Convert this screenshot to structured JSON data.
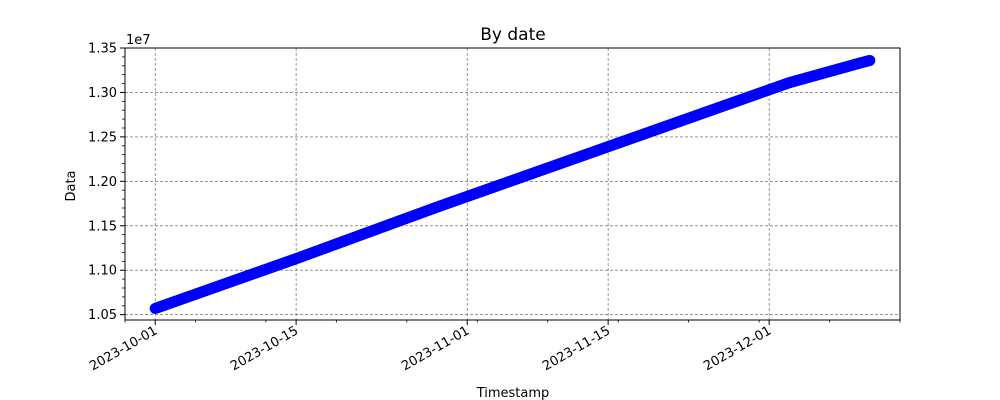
{
  "chart_data": {
    "type": "scatter",
    "title": "By date",
    "xlabel": "Timestamp",
    "ylabel": "Data",
    "y_offset_label": "1e7",
    "x_scale": "date",
    "x_range": [
      "2023-09-28",
      "2023-12-14"
    ],
    "x_ticks": [
      "2023-10-01",
      "2023-10-15",
      "2023-11-01",
      "2023-11-15",
      "2023-12-01"
    ],
    "y_range": [
      1.044,
      1.35
    ],
    "y_ticks": [
      "1.05",
      "1.10",
      "1.15",
      "1.20",
      "1.25",
      "1.30",
      "1.35"
    ],
    "y_minor_step": 0.01,
    "grid": true,
    "grid_style": "dashed",
    "marker_color": "#0000ff",
    "series": [
      {
        "x": [
          "2023-10-01",
          "2023-10-08",
          "2023-10-15",
          "2023-10-22",
          "2023-10-29",
          "2023-11-05",
          "2023-11-12",
          "2023-11-19",
          "2023-11-26",
          "2023-12-03",
          "2023-12-10",
          "2023-12-11"
        ],
        "values": [
          1.057,
          1.085,
          1.113,
          1.142,
          1.171,
          1.199,
          1.227,
          1.255,
          1.283,
          1.311,
          1.333,
          1.336
        ]
      }
    ]
  }
}
